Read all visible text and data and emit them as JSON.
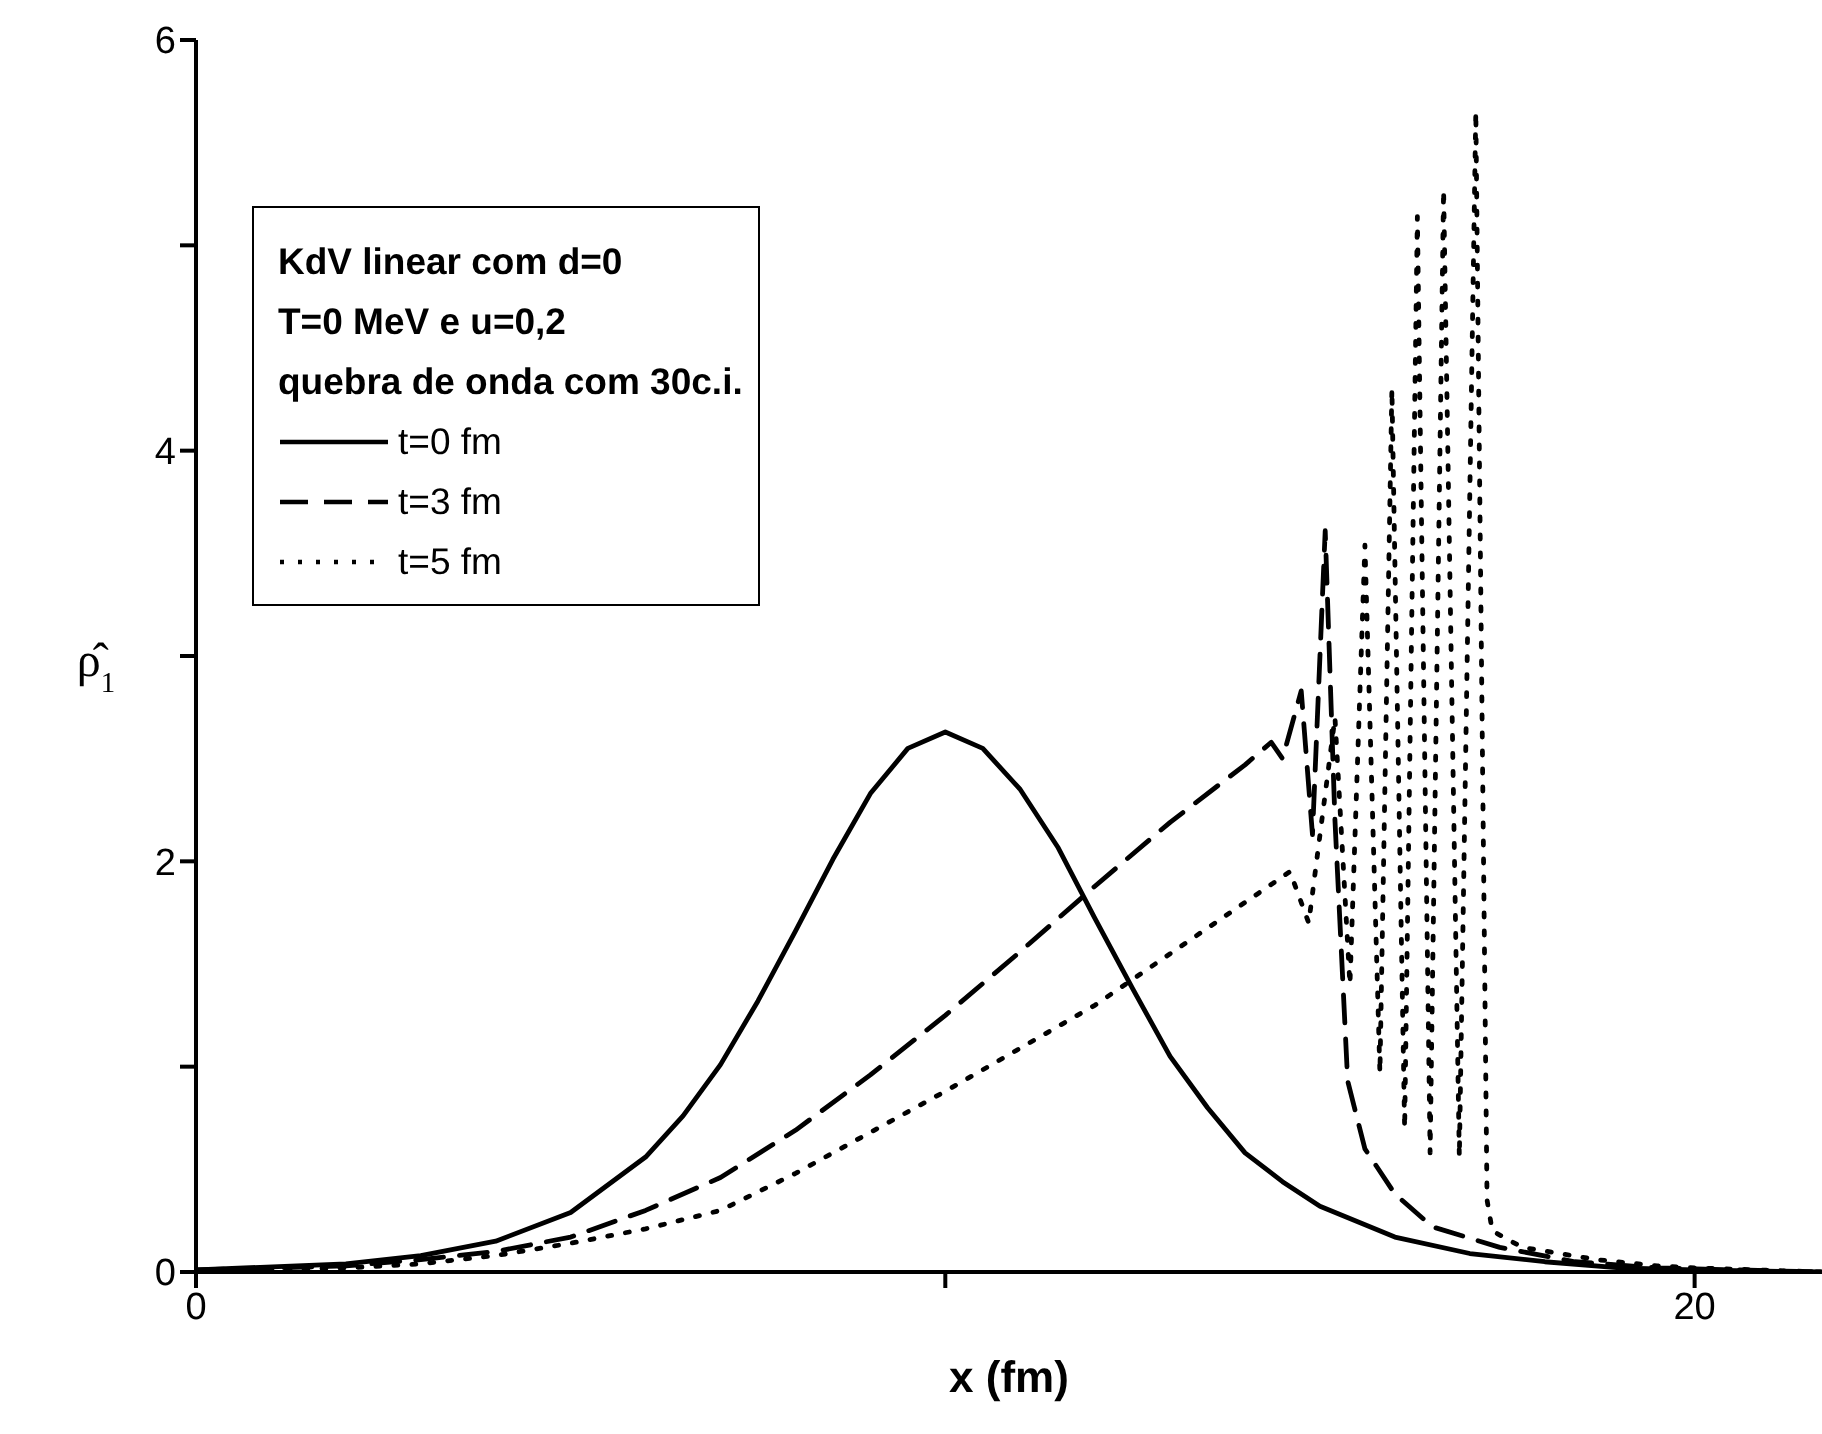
{
  "chart_data": {
    "type": "line",
    "xlabel": "x (fm)",
    "ylabel": "ρ̂$_{1}$",
    "legend_title": "KdV linear com d=0\nT=0 MeV e u=0,2\nquebra de onda com 30c.i.",
    "legend": "top left",
    "marker": "none",
    "xlim": [
      0,
      21.7
    ],
    "xticks": [
      0,
      {
        "value": 10,
        "label": null
      },
      20
    ],
    "ylim": [
      0,
      6
    ],
    "yticks": [
      0,
      {
        "value": 1,
        "label": null
      },
      2,
      {
        "value": 3,
        "label": null
      },
      4,
      {
        "value": 5,
        "label": null
      },
      6
    ],
    "series": [
      {
        "name": "t=0 fm",
        "color": "#000000",
        "line_style": "solid",
        "x": [
          0,
          2,
          3,
          4,
          5,
          6,
          6.5,
          7,
          7.5,
          8,
          8.5,
          9,
          9.5,
          10,
          10.5,
          11,
          11.5,
          12,
          12.5,
          13,
          13.5,
          14,
          14.5,
          15,
          16,
          17,
          18,
          19,
          20,
          21.7
        ],
        "values": [
          0.01,
          0.04,
          0.08,
          0.15,
          0.29,
          0.56,
          0.76,
          1.01,
          1.32,
          1.66,
          2.01,
          2.33,
          2.55,
          2.63,
          2.55,
          2.35,
          2.07,
          1.72,
          1.38,
          1.05,
          0.8,
          0.58,
          0.44,
          0.32,
          0.17,
          0.09,
          0.05,
          0.02,
          0.01,
          0
        ]
      },
      {
        "name": "t=3 fm",
        "color": "#000000",
        "line_style": "dashed",
        "x": [
          0,
          2,
          3,
          4,
          5,
          6,
          7,
          8,
          9,
          10,
          11,
          12,
          13,
          14,
          14.35,
          14.5,
          14.75,
          14.9,
          15.07,
          15.2,
          15.37,
          15.6,
          16,
          16.5,
          17.4,
          18.4,
          19.5,
          21.7
        ],
        "values": [
          0.01,
          0.03,
          0.06,
          0.1,
          0.17,
          0.3,
          0.46,
          0.69,
          0.96,
          1.25,
          1.56,
          1.88,
          2.19,
          2.47,
          2.58,
          2.5,
          2.83,
          2.13,
          3.61,
          2.2,
          0.93,
          0.6,
          0.38,
          0.22,
          0.12,
          0.05,
          0.02,
          0
        ]
      },
      {
        "name": "t=5 fm",
        "color": "#000000",
        "line_style": "dotted",
        "x": [
          0,
          2,
          3,
          4,
          5,
          6,
          7,
          8,
          9,
          10,
          11,
          12,
          13,
          14,
          14.6,
          14.85,
          15.2,
          15.4,
          15.6,
          15.8,
          15.96,
          16.13,
          16.3,
          16.47,
          16.65,
          16.86,
          17.08,
          17.23,
          17.3,
          17.7,
          18.7,
          19.5,
          20,
          21.7
        ],
        "values": [
          0,
          0.02,
          0.04,
          0.08,
          0.14,
          0.21,
          0.3,
          0.48,
          0.68,
          0.88,
          1.09,
          1.3,
          1.55,
          1.8,
          1.95,
          1.7,
          2.7,
          1.4,
          3.54,
          0.97,
          4.3,
          0.7,
          5.14,
          0.58,
          5.27,
          0.56,
          5.65,
          0.35,
          0.2,
          0.12,
          0.06,
          0.03,
          0.02,
          0
        ]
      }
    ]
  }
}
